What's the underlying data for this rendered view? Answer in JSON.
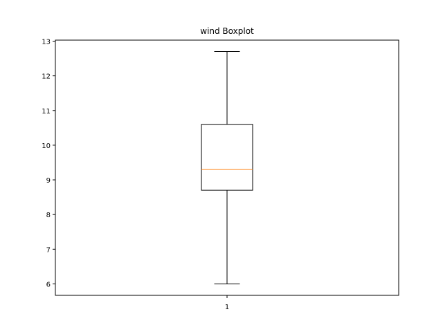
{
  "chart_data": {
    "type": "boxplot",
    "title": "wind Boxplot",
    "xlabel": "",
    "ylabel": "",
    "categories": [
      "1"
    ],
    "boxes": [
      {
        "category": "1",
        "whisker_low": 6.0,
        "q1": 8.7,
        "median": 9.3,
        "q3": 10.6,
        "whisker_high": 12.7
      }
    ],
    "ylim": [
      5.67,
      13.03
    ],
    "yticks": [
      6,
      7,
      8,
      9,
      10,
      11,
      12,
      13
    ],
    "grid": false,
    "colors": {
      "box": "#000000",
      "median": "#ff7f0e",
      "whisker": "#000000"
    }
  }
}
